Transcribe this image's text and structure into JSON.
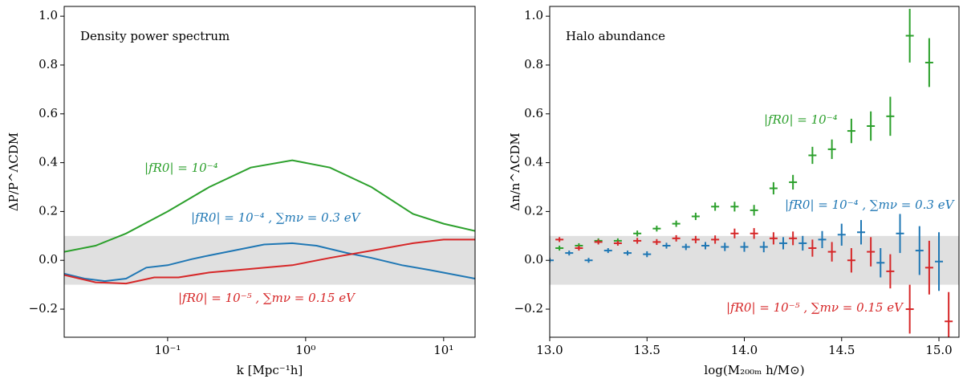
{
  "chart_data": [
    {
      "type": "line",
      "title": "Density power spectrum",
      "xlabel": "k  [Mpc⁻¹h]",
      "ylabel": "ΔP/P^ΛCDM",
      "xscale": "log",
      "xlim": [
        0.0178,
        16.9
      ],
      "ylim": [
        -0.315,
        1.04
      ],
      "xticks": [
        {
          "value": 0.1,
          "label": "10⁻¹"
        },
        {
          "value": 1,
          "label": "10⁰"
        },
        {
          "value": 10,
          "label": "10¹"
        }
      ],
      "yticks": [
        {
          "value": -0.2,
          "label": "−0.2"
        },
        {
          "value": 0,
          "label": "0.0"
        },
        0.2,
        0.4,
        0.6,
        0.8,
        {
          "value": 1,
          "label": "1.0"
        }
      ],
      "band": [
        -0.1,
        0.1
      ],
      "band_color": "#e0e0e0",
      "series": [
        {
          "color": "#2ca02c",
          "x": [
            0.0178,
            0.03,
            0.05,
            0.1,
            0.2,
            0.4,
            0.8,
            1.5,
            3,
            6,
            10,
            16.9
          ],
          "values": [
            0.035,
            0.06,
            0.11,
            0.2,
            0.3,
            0.38,
            0.41,
            0.38,
            0.3,
            0.19,
            0.15,
            0.12
          ]
        },
        {
          "color": "#1f77b4",
          "x": [
            0.0178,
            0.025,
            0.035,
            0.05,
            0.07,
            0.1,
            0.15,
            0.2,
            0.3,
            0.5,
            0.8,
            1.2,
            2,
            3,
            5,
            8,
            16.9
          ],
          "values": [
            -0.055,
            -0.075,
            -0.085,
            -0.075,
            -0.03,
            -0.02,
            0.005,
            0.02,
            0.04,
            0.065,
            0.07,
            0.06,
            0.03,
            0.01,
            -0.02,
            -0.04,
            -0.075
          ]
        },
        {
          "color": "#d62728",
          "x": [
            0.0178,
            0.03,
            0.05,
            0.08,
            0.12,
            0.2,
            0.4,
            0.8,
            1.5,
            3,
            6,
            10,
            16.9
          ],
          "values": [
            -0.06,
            -0.09,
            -0.095,
            -0.07,
            -0.07,
            -0.05,
            -0.035,
            -0.02,
            0.01,
            0.04,
            0.07,
            0.085,
            0.085
          ]
        }
      ],
      "annotations": [
        {
          "text": "|fR0| = 10⁻⁴",
          "color": "#2ca02c"
        },
        {
          "text": "|fR0| = 10⁻⁴ , ∑mν = 0.3 eV",
          "color": "#1f77b4"
        },
        {
          "text": "|fR0| = 10⁻⁵ , ∑mν = 0.15 eV",
          "color": "#d62728"
        }
      ]
    },
    {
      "type": "errorbar",
      "title": "Halo abundance",
      "xlabel": "log(M₂₀₀ₘ h/M⊙)",
      "ylabel": "Δn/n^ΛCDM",
      "xlim": [
        13.0,
        15.103
      ],
      "ylim": [
        -0.315,
        1.04
      ],
      "xticks": [
        {
          "value": 13,
          "label": "13.0"
        },
        13.5,
        {
          "value": 14,
          "label": "14.0"
        },
        14.5,
        {
          "value": 15,
          "label": "15.0"
        }
      ],
      "yticks": [
        {
          "value": -0.2,
          "label": "−0.2"
        },
        {
          "value": 0,
          "label": "0.0"
        },
        0.2,
        0.4,
        0.6,
        0.8,
        {
          "value": 1,
          "label": "1.0"
        }
      ],
      "band": [
        -0.1,
        0.1
      ],
      "band_color": "#e0e0e0",
      "series": [
        {
          "color": "#2ca02c",
          "x": [
            13.05,
            13.15,
            13.25,
            13.35,
            13.45,
            13.55,
            13.65,
            13.75,
            13.85,
            13.95,
            14.05,
            14.15,
            14.25,
            14.35,
            14.45,
            14.55,
            14.65,
            14.75,
            14.85,
            14.95
          ],
          "values": [
            0.05,
            0.06,
            0.08,
            0.08,
            0.11,
            0.13,
            0.15,
            0.18,
            0.22,
            0.22,
            0.205,
            0.295,
            0.32,
            0.43,
            0.455,
            0.53,
            0.55,
            0.59,
            0.92,
            0.81
          ],
          "errors": [
            0.01,
            0.01,
            0.01,
            0.01,
            0.012,
            0.012,
            0.013,
            0.015,
            0.017,
            0.02,
            0.022,
            0.025,
            0.03,
            0.035,
            0.04,
            0.05,
            0.06,
            0.08,
            0.11,
            0.1
          ]
        },
        {
          "color": "#1f77b4",
          "x": [
            13.0,
            13.1,
            13.2,
            13.3,
            13.4,
            13.5,
            13.6,
            13.7,
            13.8,
            13.9,
            14.0,
            14.1,
            14.2,
            14.3,
            14.4,
            14.5,
            14.6,
            14.7,
            14.8,
            14.9,
            15.0
          ],
          "values": [
            0.0,
            0.03,
            0.0,
            0.04,
            0.03,
            0.025,
            0.06,
            0.055,
            0.06,
            0.055,
            0.055,
            0.055,
            0.07,
            0.07,
            0.085,
            0.105,
            0.115,
            -0.01,
            0.11,
            0.04,
            -0.005
          ],
          "errors": [
            0.01,
            0.01,
            0.01,
            0.01,
            0.01,
            0.012,
            0.012,
            0.013,
            0.015,
            0.017,
            0.02,
            0.022,
            0.025,
            0.03,
            0.035,
            0.045,
            0.05,
            0.06,
            0.08,
            0.1,
            0.12
          ]
        },
        {
          "color": "#d62728",
          "x": [
            13.05,
            13.15,
            13.25,
            13.35,
            13.45,
            13.55,
            13.65,
            13.75,
            13.85,
            13.95,
            14.05,
            14.15,
            14.25,
            14.35,
            14.45,
            14.55,
            14.65,
            14.75,
            14.85,
            14.95,
            15.05
          ],
          "values": [
            0.085,
            0.05,
            0.075,
            0.07,
            0.08,
            0.075,
            0.09,
            0.085,
            0.085,
            0.11,
            0.11,
            0.09,
            0.09,
            0.05,
            0.035,
            0.0,
            0.035,
            -0.045,
            -0.2,
            -0.03,
            -0.25
          ],
          "errors": [
            0.01,
            0.01,
            0.01,
            0.01,
            0.012,
            0.012,
            0.013,
            0.015,
            0.017,
            0.02,
            0.022,
            0.025,
            0.028,
            0.035,
            0.04,
            0.05,
            0.06,
            0.07,
            0.1,
            0.11,
            0.12
          ]
        }
      ],
      "annotations": [
        {
          "text": "|fR0| = 10⁻⁴",
          "color": "#2ca02c"
        },
        {
          "text": "|fR0| = 10⁻⁴ , ∑mν = 0.3 eV",
          "color": "#1f77b4"
        },
        {
          "text": "|fR0| = 10⁻⁵ , ∑mν = 0.15 eV",
          "color": "#d62728"
        }
      ]
    }
  ]
}
